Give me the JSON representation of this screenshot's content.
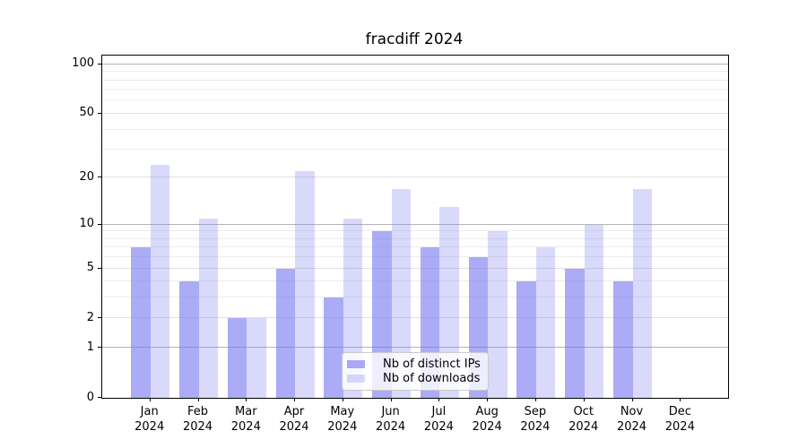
{
  "title": "fracdiff 2024",
  "chart_data": {
    "type": "bar",
    "title": "fracdiff 2024",
    "categories": [
      "Jan 2024",
      "Feb 2024",
      "Mar 2024",
      "Apr 2024",
      "May 2024",
      "Jun 2024",
      "Jul 2024",
      "Aug 2024",
      "Sep 2024",
      "Oct 2024",
      "Nov 2024",
      "Dec 2024"
    ],
    "series": [
      {
        "name": "Nb of distinct IPs",
        "color": "rgba(120,120,240,0.62)",
        "values": [
          7,
          4,
          2,
          5,
          3,
          9,
          7,
          6,
          4,
          5,
          4,
          0
        ]
      },
      {
        "name": "Nb of downloads",
        "color": "rgba(120,120,240,0.28)",
        "values": [
          24,
          11,
          2,
          22,
          11,
          17,
          13,
          9,
          7,
          10,
          17,
          0
        ]
      }
    ],
    "xlabel": "",
    "ylabel": "",
    "yscale": "log1p",
    "ylim": [
      0,
      113
    ],
    "yticks": [
      0,
      1,
      2,
      5,
      10,
      20,
      50,
      100
    ],
    "ytick_labels": [
      "0",
      "1",
      "2",
      "5",
      "10",
      "20",
      "50",
      "100"
    ],
    "major_gridlines": [
      1,
      10,
      100
    ],
    "mid_gridlines": [
      2,
      5,
      20,
      50
    ],
    "minor_gridlines": [
      3,
      4,
      6,
      7,
      8,
      9,
      30,
      40,
      60,
      70,
      80,
      90
    ],
    "grid": true,
    "legend_position": "lower center"
  },
  "legend": {
    "items": [
      {
        "label": "Nb of distinct IPs",
        "color": "rgba(120,120,240,0.62)"
      },
      {
        "label": "Nb of downloads",
        "color": "rgba(120,120,240,0.28)"
      }
    ]
  },
  "colors": {
    "bar_distinct_ips": "rgba(120,120,240,0.62)",
    "bar_downloads": "rgba(120,120,240,0.28)",
    "grid_major": "#b4b4b4",
    "grid_minor": "#ececec",
    "spine": "#000000",
    "background": "#ffffff"
  }
}
